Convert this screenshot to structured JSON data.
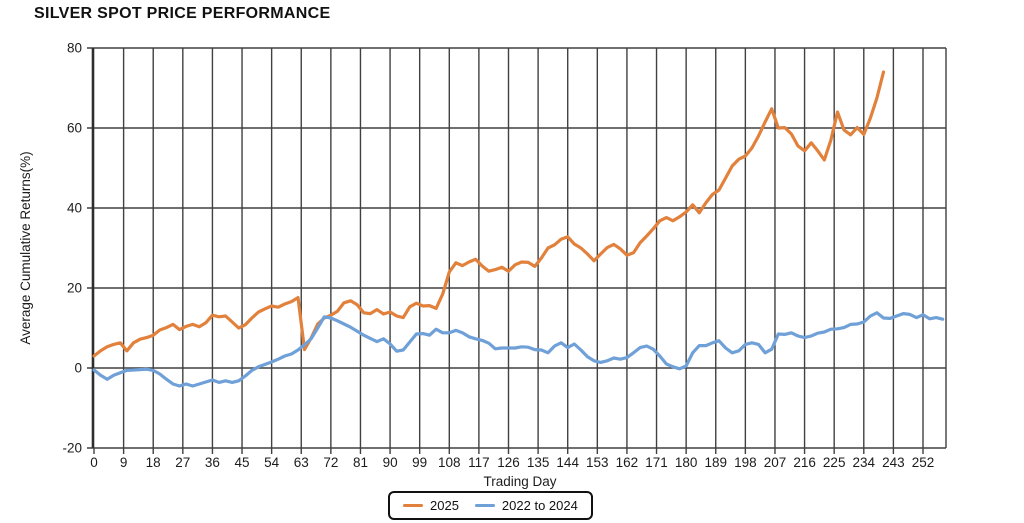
{
  "chart_data": {
    "type": "line",
    "title": "SILVER SPOT PRICE PERFORMANCE",
    "xlabel": "Trading Day",
    "ylabel": "Average Cumulative Returns(%)",
    "xlim": [
      0,
      259
    ],
    "ylim": [
      -20,
      80
    ],
    "x_ticks": [
      0,
      9,
      18,
      27,
      36,
      45,
      54,
      63,
      72,
      81,
      90,
      99,
      108,
      117,
      126,
      135,
      144,
      153,
      162,
      171,
      180,
      189,
      198,
      207,
      216,
      225,
      234,
      243,
      252
    ],
    "y_ticks": [
      80,
      60,
      40,
      20,
      0,
      -20
    ],
    "grid": true,
    "legend_position": "bottom-center",
    "colors": {
      "grid": "#404040",
      "axis": "#2e2e2e",
      "text": "#1c1c1c",
      "background": "#ffffff"
    },
    "series": [
      {
        "name": "2025",
        "color": "#E2813C",
        "x_start": 0,
        "x_step": 2,
        "values": [
          3.0,
          4.3,
          5.3,
          5.9,
          6.3,
          4.3,
          6.3,
          7.2,
          7.6,
          8.2,
          9.5,
          10.1,
          10.9,
          9.6,
          10.4,
          10.9,
          10.3,
          11.3,
          13.2,
          12.8,
          13.0,
          11.5,
          10.0,
          10.8,
          12.5,
          14.0,
          14.8,
          15.5,
          15.2,
          16.0,
          16.6,
          17.6,
          4.6,
          7.5,
          11.0,
          12.5,
          13.2,
          14.2,
          16.3,
          16.8,
          15.8,
          13.8,
          13.6,
          14.6,
          13.5,
          14.0,
          13.0,
          12.6,
          15.3,
          16.2,
          15.5,
          15.6,
          14.9,
          18.5,
          24.0,
          26.3,
          25.6,
          26.5,
          27.2,
          25.5,
          24.2,
          24.6,
          25.2,
          24.2,
          25.8,
          26.5,
          26.4,
          25.4,
          27.5,
          30.0,
          30.8,
          32.2,
          32.8,
          31.0,
          30.0,
          28.5,
          26.8,
          28.5,
          30.1,
          30.9,
          29.8,
          28.2,
          28.8,
          31.3,
          33.0,
          34.8,
          36.8,
          37.6,
          36.8,
          37.8,
          39.0,
          40.8,
          38.8,
          41.3,
          43.4,
          44.5,
          47.5,
          50.5,
          52.2,
          53.0,
          55.0,
          58.0,
          61.5,
          64.8,
          60.0,
          60.1,
          58.5,
          55.5,
          54.3,
          56.3,
          54.3,
          52.0,
          57.0,
          64.0,
          59.5,
          58.3,
          60.1,
          58.4,
          62.5,
          67.5,
          74.0
        ]
      },
      {
        "name": "2022 to 2024",
        "color": "#6FA0D8",
        "x_start": 0,
        "x_step": 2,
        "values": [
          -0.5,
          -1.8,
          -2.8,
          -1.8,
          -1.2,
          -0.6,
          -0.5,
          -0.4,
          -0.3,
          -0.6,
          -1.5,
          -2.8,
          -4.0,
          -4.5,
          -4.0,
          -4.5,
          -4.0,
          -3.5,
          -3.0,
          -3.6,
          -3.2,
          -3.6,
          -3.2,
          -2.0,
          -0.6,
          0.3,
          0.9,
          1.5,
          2.2,
          3.0,
          3.5,
          4.5,
          5.8,
          7.3,
          10.0,
          12.8,
          12.5,
          11.8,
          11.0,
          10.2,
          9.2,
          8.2,
          7.4,
          6.6,
          7.3,
          6.0,
          4.2,
          4.5,
          6.5,
          8.5,
          8.6,
          8.2,
          9.7,
          8.8,
          8.8,
          9.4,
          8.8,
          7.8,
          7.3,
          6.9,
          6.2,
          4.8,
          5.0,
          5.0,
          5.0,
          5.3,
          5.2,
          4.6,
          4.5,
          3.8,
          5.5,
          6.3,
          5.1,
          6.0,
          4.5,
          2.8,
          1.8,
          1.4,
          1.8,
          2.5,
          2.2,
          2.6,
          3.8,
          5.1,
          5.5,
          4.7,
          3.0,
          1.0,
          0.3,
          -0.2,
          0.5,
          3.8,
          5.6,
          5.6,
          6.3,
          6.8,
          5.0,
          3.8,
          4.3,
          5.9,
          6.3,
          5.9,
          3.8,
          4.7,
          8.5,
          8.4,
          8.8,
          8.0,
          7.6,
          8.0,
          8.7,
          9.0,
          9.7,
          9.8,
          10.1,
          10.9,
          11.0,
          11.5,
          13.0,
          13.8,
          12.5,
          12.4,
          13.0,
          13.6,
          13.4,
          12.6,
          13.3,
          12.3,
          12.6,
          12.2
        ]
      }
    ]
  }
}
